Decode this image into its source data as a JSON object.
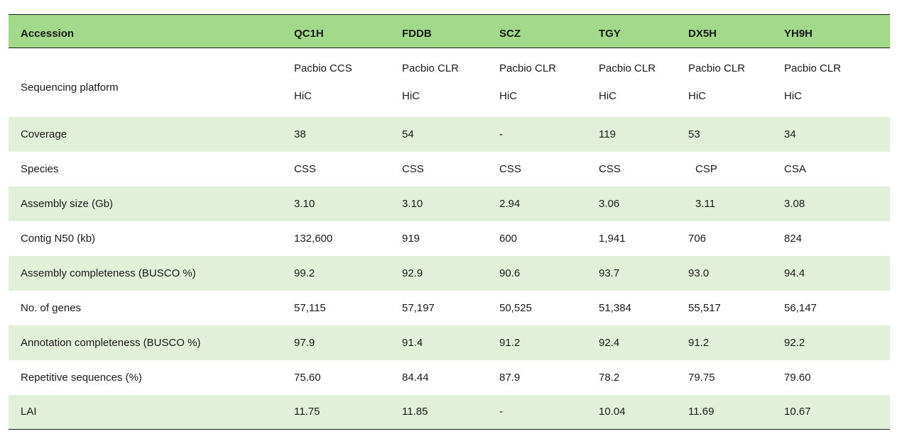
{
  "table": {
    "headers": [
      "Accession",
      "QC1H",
      "FDDB",
      "SCZ",
      "TGY",
      "DX5H",
      "YH9H"
    ],
    "platform_row": {
      "label": "Sequencing platform",
      "line1": [
        "Pacbio CCS",
        "Pacbio CLR",
        "Pacbio CLR",
        "Pacbio CLR",
        "Pacbio CLR",
        "Pacbio CLR"
      ],
      "line2": [
        "HiC",
        "HiC",
        "HiC",
        "HiC",
        "HiC",
        "HiC"
      ]
    },
    "rows": [
      {
        "label": "Coverage",
        "values": [
          "38",
          "54",
          "-",
          "119",
          "53",
          "34"
        ]
      },
      {
        "label": "Species",
        "values": [
          "CSS",
          "CSS",
          "CSS",
          "CSS",
          "CSP",
          "CSA"
        ]
      },
      {
        "label": "Assembly size (Gb)",
        "values": [
          "3.10",
          "3.10",
          "2.94",
          "3.06",
          "3.11",
          "3.08"
        ]
      },
      {
        "label": "Contig N50 (kb)",
        "values": [
          "132,600",
          "919",
          "600",
          "1,941",
          "706",
          "824"
        ]
      },
      {
        "label": "Assembly completeness (BUSCO %)",
        "values": [
          "99.2",
          "92.9",
          "90.6",
          "93.7",
          "93.0",
          "94.4"
        ]
      },
      {
        "label": "No. of genes",
        "values": [
          "57,115",
          "57,197",
          "50,525",
          "51,384",
          "55,517",
          "56,147"
        ]
      },
      {
        "label": "Annotation completeness (BUSCO %)",
        "values": [
          "97.9",
          "91.4",
          "91.2",
          "92.4",
          "91.2",
          "92.2"
        ]
      },
      {
        "label": "Repetitive sequences (%)",
        "values": [
          "75.60",
          "84.44",
          "87.9",
          "78.2",
          "79.75",
          "79.60"
        ]
      },
      {
        "label": "LAI",
        "values": [
          "11.75",
          "11.85",
          "-",
          "10.04",
          "11.69",
          "10.67"
        ]
      }
    ]
  },
  "colors": {
    "header_bg": "#a2d98a",
    "shaded_row_bg": "#e2f0d9",
    "rule": "#1a1a1a"
  }
}
